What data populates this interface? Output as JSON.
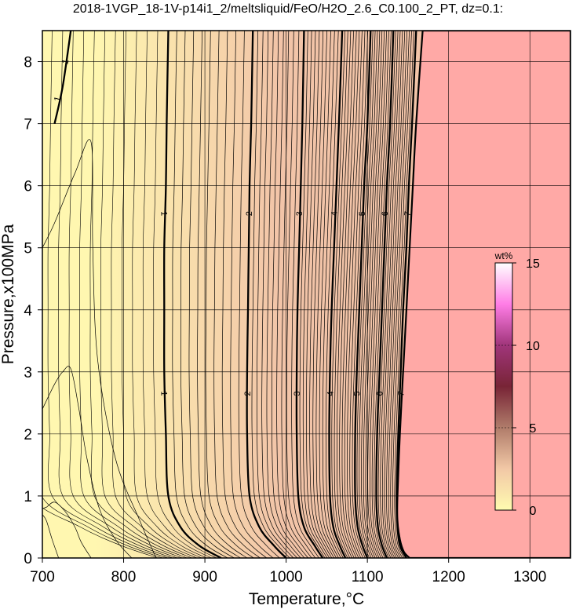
{
  "chart_data": {
    "type": "heatmap",
    "title": "2018-1VGP_18-1V-p14i1_2/meltsliquid/FeO/H2O_2.6_C0.100_2_PT, dz=0.1:",
    "xlabel": "Temperature,°C",
    "ylabel": "Pressure,x100MPa",
    "xlim": [
      700,
      1350
    ],
    "ylim": [
      0,
      8.5
    ],
    "x_ticks": [
      700,
      800,
      900,
      1000,
      1100,
      1200,
      1300
    ],
    "y_ticks": [
      0,
      1,
      2,
      3,
      4,
      5,
      6,
      7,
      8
    ],
    "grid": true,
    "contour_interval": 0.1,
    "colorbar": {
      "label": "wt%",
      "range": [
        0,
        15
      ],
      "ticks": [
        0,
        5,
        10,
        15
      ],
      "colors": [
        "#fffbb0",
        "#f2c8a6",
        "#b07c6a",
        "#782436",
        "#a0357a",
        "#ff7de6",
        "#ffffff"
      ]
    },
    "background_colors": {
      "low": "#fff7b0",
      "high": "#f2c4a8",
      "no_melt": "#ffa9a6"
    },
    "major_contours": [
      {
        "level": "1",
        "label_values": [
          1,
          1
        ],
        "points": [
          [
            715,
            7.0
          ],
          [
            725,
            7.6
          ],
          [
            735,
            8.5
          ]
        ]
      },
      {
        "level": "1",
        "label_values": [
          1,
          1
        ],
        "points": [
          [
            920,
            0.0
          ],
          [
            893,
            0.2
          ],
          [
            870,
            0.5
          ],
          [
            855,
            1.0
          ],
          [
            852,
            2.0
          ],
          [
            850,
            3.0
          ],
          [
            850,
            4.0
          ],
          [
            850,
            5.0
          ],
          [
            852,
            6.0
          ],
          [
            853,
            7.0
          ],
          [
            855,
            8.5
          ]
        ]
      },
      {
        "level": "2",
        "label_values": [
          2,
          2
        ],
        "points": [
          [
            1000,
            0.0
          ],
          [
            985,
            0.2
          ],
          [
            967,
            0.5
          ],
          [
            955,
            1.0
          ],
          [
            952,
            2.0
          ],
          [
            952,
            3.0
          ],
          [
            953,
            4.0
          ],
          [
            954,
            5.0
          ],
          [
            955,
            6.0
          ],
          [
            957,
            7.0
          ],
          [
            959,
            8.5
          ]
        ]
      },
      {
        "level": "3",
        "label_values": [
          3,
          3
        ],
        "points": [
          [
            1045,
            0.0
          ],
          [
            1035,
            0.2
          ],
          [
            1022,
            0.5
          ],
          [
            1015,
            1.0
          ],
          [
            1013,
            2.0
          ],
          [
            1013,
            3.0
          ],
          [
            1014,
            4.0
          ],
          [
            1016,
            5.0
          ],
          [
            1018,
            6.0
          ],
          [
            1020,
            7.0
          ],
          [
            1022,
            8.5
          ]
        ]
      },
      {
        "level": "4",
        "label_values": [
          4,
          4
        ],
        "points": [
          [
            1073,
            0.0
          ],
          [
            1066,
            0.2
          ],
          [
            1058,
            0.5
          ],
          [
            1054,
            1.0
          ],
          [
            1053,
            2.0
          ],
          [
            1054,
            3.0
          ],
          [
            1056,
            4.0
          ],
          [
            1059,
            5.0
          ],
          [
            1062,
            6.0
          ],
          [
            1065,
            7.0
          ],
          [
            1069,
            8.5
          ]
        ]
      },
      {
        "level": "5",
        "label_values": [
          5,
          5
        ],
        "points": [
          [
            1100,
            0.0
          ],
          [
            1094,
            0.2
          ],
          [
            1088,
            0.5
          ],
          [
            1085,
            1.0
          ],
          [
            1085,
            2.0
          ],
          [
            1087,
            3.0
          ],
          [
            1090,
            4.0
          ],
          [
            1093,
            5.0
          ],
          [
            1096,
            6.0
          ],
          [
            1100,
            7.0
          ],
          [
            1104,
            8.5
          ]
        ]
      },
      {
        "level": "6",
        "label_values": [
          6,
          6
        ],
        "points": [
          [
            1124,
            0.0
          ],
          [
            1118,
            0.2
          ],
          [
            1113,
            0.5
          ],
          [
            1111,
            1.0
          ],
          [
            1112,
            2.0
          ],
          [
            1115,
            3.0
          ],
          [
            1118,
            4.0
          ],
          [
            1121,
            5.0
          ],
          [
            1124,
            6.0
          ],
          [
            1128,
            7.0
          ],
          [
            1132,
            8.5
          ]
        ]
      },
      {
        "level": "7",
        "label_values": [
          7,
          7
        ],
        "points": [
          [
            1148,
            0.0
          ],
          [
            1140,
            0.2
          ],
          [
            1137,
            0.5
          ],
          [
            1136,
            1.0
          ],
          [
            1138,
            2.0
          ],
          [
            1141,
            3.0
          ],
          [
            1144,
            4.0
          ],
          [
            1148,
            5.0
          ],
          [
            1151,
            6.0
          ],
          [
            1155,
            7.0
          ],
          [
            1160,
            8.5
          ]
        ]
      }
    ],
    "no_melt_boundary": [
      [
        1152,
        0.0
      ],
      [
        1145,
        0.1
      ],
      [
        1140,
        0.3
      ],
      [
        1137,
        0.6
      ],
      [
        1137,
        1.0
      ],
      [
        1140,
        2.0
      ],
      [
        1144,
        3.0
      ],
      [
        1148,
        4.0
      ],
      [
        1152,
        5.0
      ],
      [
        1156,
        6.0
      ],
      [
        1160,
        7.0
      ],
      [
        1168,
        8.5
      ]
    ],
    "contour_labels": [
      {
        "text": "1",
        "x": 718,
        "y": 7.4,
        "angle": -75
      },
      {
        "text": "1",
        "x": 728,
        "y": 8.0,
        "angle": -75
      },
      {
        "text": "1",
        "x": 850,
        "y": 5.55,
        "angle": 90
      },
      {
        "text": "1",
        "x": 850,
        "y": 2.65,
        "angle": 90
      },
      {
        "text": "2",
        "x": 954,
        "y": 5.55,
        "angle": -90
      },
      {
        "text": "2",
        "x": 952,
        "y": 2.65,
        "angle": -90
      },
      {
        "text": "3",
        "x": 1016,
        "y": 5.55,
        "angle": -90
      },
      {
        "text": "3",
        "x": 1013,
        "y": 2.65,
        "angle": -90
      },
      {
        "text": "4",
        "x": 1059,
        "y": 5.55,
        "angle": -90
      },
      {
        "text": "4",
        "x": 1054,
        "y": 2.65,
        "angle": -90
      },
      {
        "text": "5",
        "x": 1093,
        "y": 5.55,
        "angle": -90
      },
      {
        "text": "5",
        "x": 1087,
        "y": 2.65,
        "angle": -90
      },
      {
        "text": "6",
        "x": 1121,
        "y": 5.55,
        "angle": -90
      },
      {
        "text": "6",
        "x": 1115,
        "y": 2.65,
        "angle": -90
      },
      {
        "text": "7",
        "x": 1149,
        "y": 5.55,
        "angle": -80
      },
      {
        "text": "7",
        "x": 1141,
        "y": 2.65,
        "angle": -80
      }
    ],
    "minor_outlines": [
      [
        [
          700,
          2.4
        ],
        [
          715,
          2.8
        ],
        [
          725,
          3.0
        ],
        [
          735,
          3.05
        ],
        [
          745,
          2.4
        ],
        [
          755,
          1.6
        ],
        [
          770,
          0.8
        ],
        [
          790,
          0.3
        ],
        [
          810,
          0.0
        ]
      ],
      [
        [
          760,
          0.0
        ],
        [
          748,
          0.25
        ],
        [
          740,
          0.5
        ],
        [
          728,
          0.75
        ],
        [
          715,
          0.9
        ],
        [
          705,
          0.82
        ],
        [
          700,
          0.8
        ]
      ],
      [
        [
          700,
          5.0
        ],
        [
          715,
          5.4
        ],
        [
          740,
          6.2
        ],
        [
          760,
          6.7
        ],
        [
          762,
          5.0
        ],
        [
          768,
          3.2
        ],
        [
          790,
          1.6
        ],
        [
          820,
          0.6
        ],
        [
          840,
          0.0
        ]
      ],
      [
        [
          720,
          0.0
        ],
        [
          712,
          0.3
        ],
        [
          705,
          0.6
        ],
        [
          700,
          0.7
        ]
      ]
    ]
  }
}
